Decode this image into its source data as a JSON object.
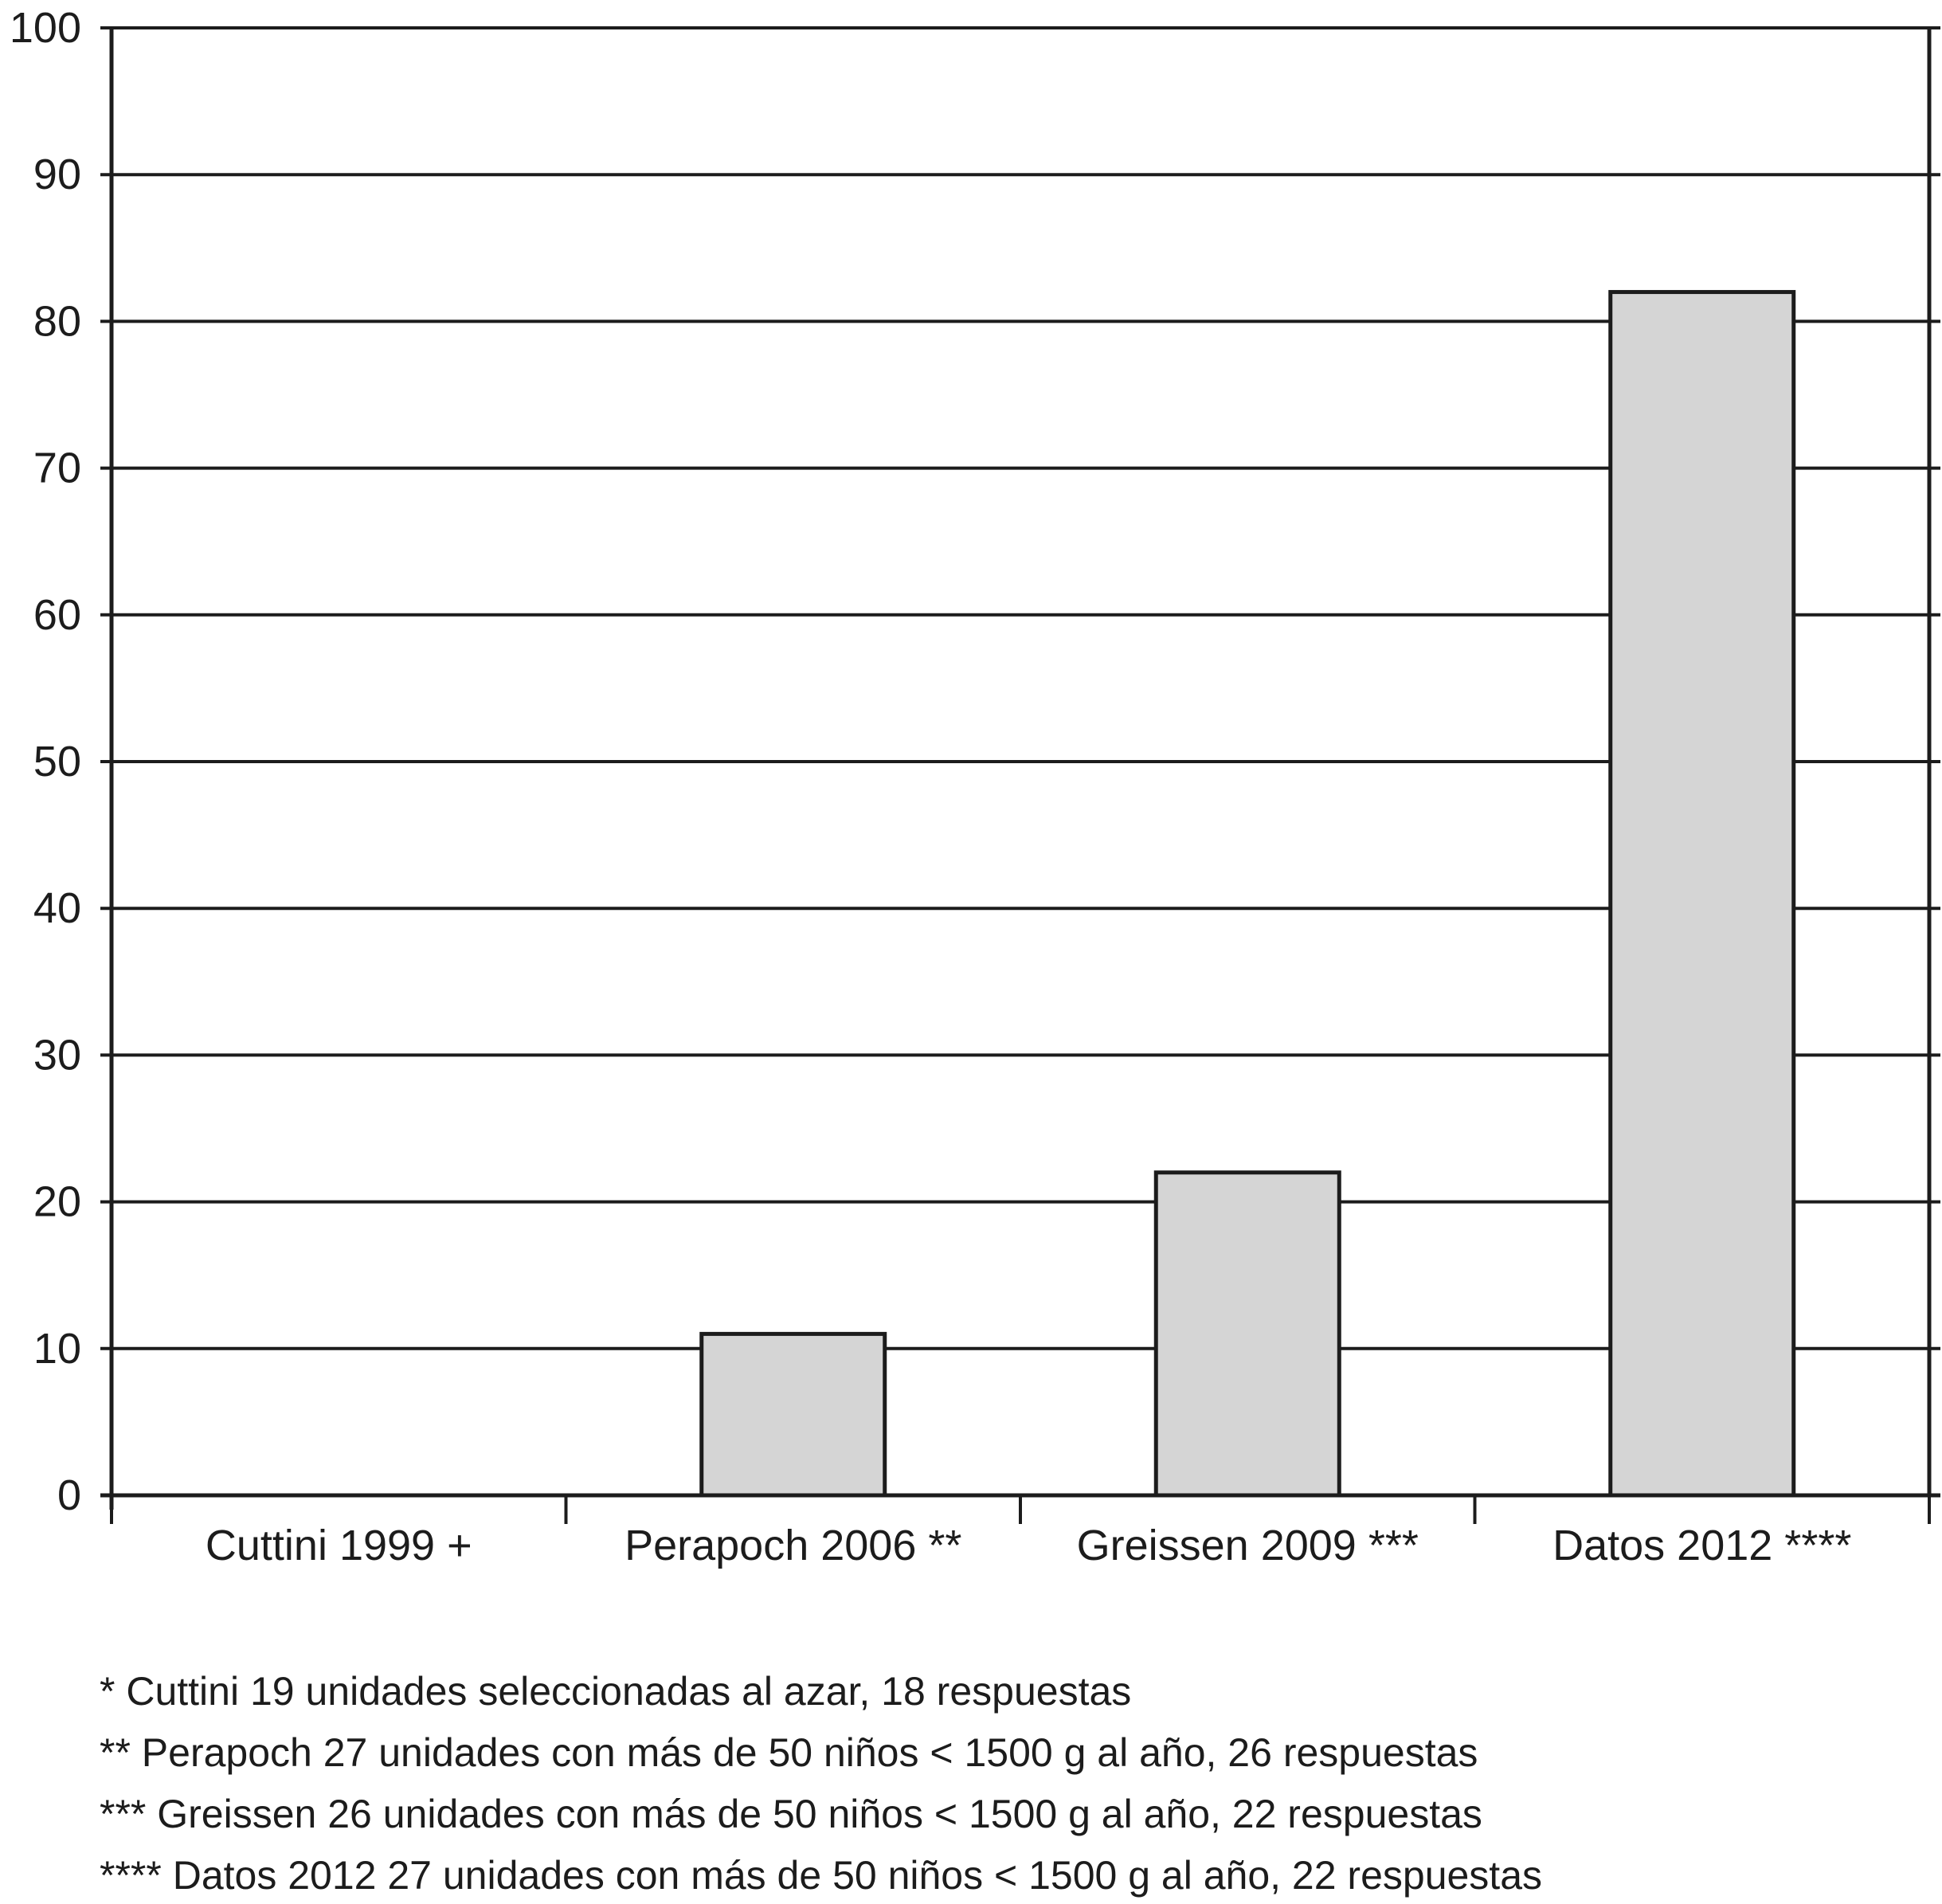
{
  "chart_data": {
    "type": "bar",
    "categories": [
      "Cuttini 1999 +",
      "Perapoch 2006 **",
      "Greissen 2009 ***",
      "Datos 2012 ****"
    ],
    "values": [
      0,
      11,
      22,
      82
    ],
    "title": "",
    "xlabel": "",
    "ylabel": "",
    "ylim": [
      0,
      100
    ],
    "y_ticks": [
      0,
      10,
      20,
      30,
      40,
      50,
      60,
      70,
      80,
      90,
      100
    ],
    "grid": true,
    "legend": false,
    "bar_fill_color": "#d5d5d5",
    "bar_border_color": "#1c1c1c",
    "axis_color": "#1c1c1c",
    "footnotes": [
      "* Cuttini 19 unidades seleccionadas al azar, 18 respuestas",
      "** Perapoch 27 unidades con más de 50 niños < 1500 g al año, 26 respuestas",
      "*** Greissen 26 unidades con más de 50 niños < 1500 g al año, 22 respuestas",
      "**** Datos 2012 27 unidades con más de 50 niños < 1500 g al año, 22 respuestas"
    ]
  }
}
